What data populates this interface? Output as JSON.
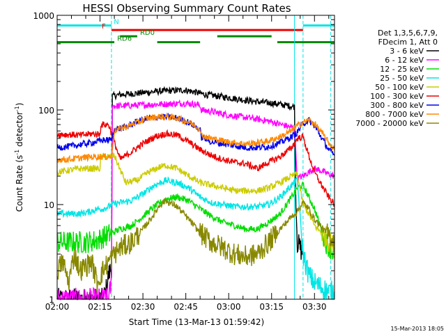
{
  "chart_data": {
    "type": "line",
    "title": "HESSI Observing Summary Count Rates",
    "xlabel": "Start Time (13-Mar-13 01:59:42)",
    "ylabel_main": "Count Rate (s",
    "ylabel_sup1": "-1",
    "ylabel_mid": " detector",
    "ylabel_sup2": "-1",
    "ylabel_end": ")",
    "y_scale": "log",
    "ylim": [
      1,
      1000
    ],
    "xlim_minutes": [
      0,
      97
    ],
    "x_ticks": [
      {
        "label": "02:00",
        "t": 0
      },
      {
        "label": "02:15",
        "t": 15
      },
      {
        "label": "02:30",
        "t": 30
      },
      {
        "label": "02:45",
        "t": 45
      },
      {
        "label": "03:00",
        "t": 60
      },
      {
        "label": "03:15",
        "t": 75
      },
      {
        "label": "03:30",
        "t": 90
      }
    ],
    "y_ticks": [
      {
        "label": "1",
        "v": 1
      },
      {
        "label": "10",
        "v": 10
      },
      {
        "label": "100",
        "v": 100
      },
      {
        "label": "1000",
        "v": 1000
      }
    ],
    "legend": {
      "header": [
        "Det 1,3,5,6,7,9,",
        "FDecim 1, Att 0"
      ],
      "entries": [
        {
          "label": "3 - 6 keV",
          "color": "#000000"
        },
        {
          "label": "6 - 12 keV",
          "color": "#ff00ff"
        },
        {
          "label": "12 - 25 keV",
          "color": "#00dd00"
        },
        {
          "label": "25 - 50 keV",
          "color": "#00e5e5"
        },
        {
          "label": "50 - 100 keV",
          "color": "#cccc00"
        },
        {
          "label": "100 - 300 keV",
          "color": "#ee0000"
        },
        {
          "label": "300 - 800 keV",
          "color": "#0000ee"
        },
        {
          "label": "800 - 7000 keV",
          "color": "#ff8800"
        },
        {
          "label": "7000 - 20000 keV",
          "color": "#888800"
        }
      ]
    },
    "flag_bars": [
      {
        "label": "N",
        "color": "#00e5e5",
        "v": 780,
        "segments": [
          [
            0,
            19
          ],
          [
            86,
            97
          ]
        ],
        "label_t": 19.3,
        "label_side": "right"
      },
      {
        "label": "F",
        "color": "#ee0000",
        "v": 700,
        "segments": [
          [
            19,
            86
          ]
        ],
        "label_t": 17.5,
        "label_side": "left"
      },
      {
        "label": "RD0",
        "color": "#008800",
        "v": 600,
        "segments": [
          [
            22,
            28
          ],
          [
            56,
            75
          ]
        ],
        "label_t": 28.5,
        "label_side": "right"
      },
      {
        "label": "RD6",
        "color": "#008800",
        "v": 520,
        "segments": [
          [
            0,
            20
          ],
          [
            35,
            50
          ],
          [
            77,
            97
          ]
        ],
        "label_t": 20.5,
        "label_side": "right"
      }
    ],
    "vertical_lines": [
      {
        "t": 19,
        "color": "#00e5e5",
        "style": "dashed"
      },
      {
        "t": 83,
        "color": "#00e5e5",
        "style": "solid"
      },
      {
        "t": 86,
        "color": "#00e5e5",
        "style": "dashed"
      },
      {
        "t": 95.7,
        "color": "#00e5e5",
        "style": "dashed"
      }
    ],
    "series": [
      {
        "name": "3 - 6 keV",
        "color": "#000000",
        "t": [
          0,
          5,
          10,
          14,
          16,
          17,
          18,
          19,
          19.3,
          22,
          28,
          36,
          40,
          45,
          48,
          52,
          56,
          60,
          65,
          70,
          75,
          80,
          83,
          83.5,
          84,
          86
        ],
        "v": [
          1,
          1,
          1,
          1,
          1,
          1.2,
          1.8,
          2.2,
          140,
          145,
          150,
          158,
          160,
          162,
          155,
          145,
          140,
          135,
          128,
          122,
          118,
          112,
          108,
          10,
          4,
          3
        ]
      },
      {
        "name": "6 - 12 keV",
        "color": "#ff00ff",
        "t": [
          0,
          5,
          10,
          14,
          16,
          18,
          19,
          19.3,
          22,
          28,
          36,
          40,
          45,
          48,
          50,
          50.3,
          55,
          60,
          65,
          70,
          75,
          80,
          83,
          84,
          86,
          88,
          90,
          92,
          95,
          97
        ],
        "v": [
          1,
          1,
          1,
          1,
          1,
          1,
          1.5,
          110,
          110,
          112,
          115,
          116,
          118,
          115,
          112,
          100,
          95,
          88,
          84,
          80,
          75,
          68,
          64,
          19,
          20,
          22,
          24,
          23,
          21,
          20
        ]
      },
      {
        "name": "12 - 25 keV",
        "color": "#00dd00",
        "t": [
          0,
          3,
          6,
          10,
          14,
          16,
          18,
          19,
          22,
          26,
          30,
          34,
          38,
          42,
          46,
          50,
          54,
          58,
          62,
          66,
          70,
          74,
          78,
          82,
          84,
          86,
          88,
          90,
          92,
          94,
          97
        ],
        "v": [
          4,
          4,
          4,
          4,
          4.2,
          4.5,
          4.8,
          5,
          5.5,
          6,
          7.5,
          9.5,
          11.5,
          12,
          11,
          9,
          7.5,
          6.5,
          6,
          5.5,
          5.5,
          6.5,
          8,
          12,
          15,
          16,
          12,
          9,
          6,
          4,
          3
        ]
      },
      {
        "name": "25 - 50 keV",
        "color": "#00e5e5",
        "t": [
          0,
          4,
          8,
          12,
          14,
          16,
          18,
          19,
          22,
          26,
          30,
          34,
          38,
          42,
          46,
          50,
          54,
          58,
          62,
          66,
          70,
          74,
          78,
          82,
          84,
          86,
          88,
          90,
          93,
          95,
          97
        ],
        "v": [
          8,
          8,
          8,
          8.5,
          9,
          9,
          9.5,
          10,
          10.5,
          11,
          13,
          16,
          18,
          17,
          15,
          12,
          10.5,
          10,
          9.5,
          9.5,
          9.5,
          10,
          12,
          16,
          18,
          3,
          1.8,
          1.5,
          1.3,
          1.2,
          1.2
        ]
      },
      {
        "name": "50 - 100 keV",
        "color": "#cccc00",
        "t": [
          0,
          4,
          8,
          12,
          14,
          15,
          15.3,
          18,
          20,
          24,
          28,
          32,
          36,
          38,
          42,
          46,
          50,
          54,
          58,
          62,
          66,
          70,
          74,
          78,
          82,
          84,
          86,
          88,
          90,
          94,
          97
        ],
        "v": [
          22,
          23,
          24,
          24,
          24,
          24,
          32,
          32,
          33,
          17,
          18,
          22,
          25,
          26,
          24,
          20,
          17,
          16,
          15,
          14,
          14,
          14,
          15,
          17,
          20,
          21,
          10,
          8,
          6,
          4.5,
          3.5
        ]
      },
      {
        "name": "100 - 300 keV",
        "color": "#ee0000",
        "t": [
          0,
          4,
          8,
          12,
          15,
          15.3,
          18,
          22,
          26,
          30,
          34,
          38,
          42,
          46,
          50,
          54,
          58,
          62,
          66,
          70,
          74,
          78,
          82,
          84,
          86,
          88,
          90,
          93,
          95,
          97
        ],
        "v": [
          55,
          55,
          54,
          56,
          55,
          70,
          70,
          30,
          36,
          44,
          52,
          56,
          54,
          46,
          38,
          33,
          30,
          28,
          27,
          24,
          28,
          32,
          40,
          50,
          52,
          33,
          22,
          15,
          12,
          10
        ]
      },
      {
        "name": "300 - 800 keV",
        "color": "#0000ee",
        "t": [
          0,
          4,
          8,
          12,
          16,
          19,
          20,
          24,
          28,
          32,
          36,
          38,
          42,
          46,
          50,
          50.3,
          54,
          58,
          62,
          66,
          70,
          74,
          78,
          82,
          84,
          86,
          88,
          90,
          93,
          95,
          97
        ],
        "v": [
          40,
          41,
          43,
          45,
          48,
          48,
          62,
          66,
          75,
          82,
          84,
          84,
          82,
          74,
          62,
          52,
          46,
          44,
          42,
          40,
          40,
          41,
          45,
          52,
          58,
          72,
          78,
          68,
          48,
          38,
          33
        ]
      },
      {
        "name": "800 - 7000 keV",
        "color": "#ff8800",
        "t": [
          0,
          4,
          8,
          12,
          15,
          18,
          19,
          20,
          24,
          28,
          32,
          36,
          38,
          42,
          46,
          50,
          50.3,
          54,
          58,
          62,
          66,
          70,
          74,
          78,
          82,
          84,
          86,
          88,
          90,
          93,
          95,
          97
        ],
        "v": [
          30,
          30,
          31,
          32,
          32,
          32,
          32,
          60,
          66,
          74,
          82,
          85,
          85,
          82,
          74,
          64,
          54,
          50,
          47,
          45,
          44,
          45,
          47,
          52,
          60,
          68,
          74,
          78,
          72,
          55,
          45,
          38
        ]
      },
      {
        "name": "7000 - 20000 keV",
        "color": "#888800",
        "t": [
          0,
          2,
          4,
          6,
          8,
          12,
          14,
          16,
          18,
          20,
          22,
          26,
          30,
          34,
          36,
          38,
          42,
          46,
          50,
          54,
          58,
          62,
          66,
          70,
          74,
          78,
          82,
          84,
          86,
          88,
          90,
          92,
          94,
          96,
          97
        ],
        "v": [
          2,
          2.5,
          1.5,
          3,
          2,
          2.5,
          1.5,
          2,
          2.5,
          3,
          3.5,
          4,
          5.5,
          8,
          10,
          11,
          9.5,
          7,
          5,
          4,
          3.5,
          3,
          2.8,
          3,
          4,
          5.5,
          7.5,
          8.5,
          10.5,
          9,
          7,
          6,
          5,
          4.5,
          4
        ]
      }
    ]
  },
  "footer_date": "15-Mar-2013 18:05"
}
